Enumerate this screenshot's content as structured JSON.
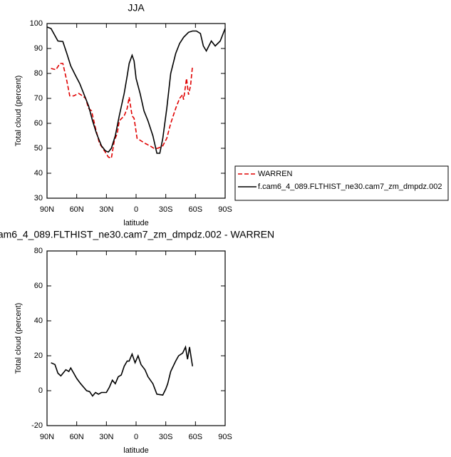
{
  "chart_data": [
    {
      "type": "line",
      "title": "JJA",
      "ylabel": "Total cloud (percent)",
      "xlabel": "latitude",
      "xlim": [
        90,
        -90
      ],
      "xticks": [
        {
          "value": 90,
          "label": "90N"
        },
        {
          "value": 60,
          "label": "60N"
        },
        {
          "value": 30,
          "label": "30N"
        },
        0,
        {
          "value": -30,
          "label": "30S"
        },
        {
          "value": -60,
          "label": "60S"
        },
        {
          "value": -90,
          "label": "90S"
        }
      ],
      "ylim": [
        30,
        100
      ],
      "yticks": [
        30,
        40,
        50,
        60,
        70,
        80,
        90,
        100
      ],
      "legend": "right",
      "series": [
        {
          "name": "WARREN",
          "color": "#e00000",
          "line_style": "dashed",
          "x": [
            86,
            81,
            77,
            74,
            70,
            67,
            63,
            58,
            54,
            51,
            48,
            45,
            41,
            37,
            32,
            28,
            25,
            22,
            19,
            17,
            12,
            9,
            7,
            4,
            2,
            -1,
            -5,
            -9,
            -14,
            -18,
            -22,
            -27,
            -31,
            -35,
            -40,
            -44,
            -47,
            -48,
            -51,
            -53,
            -55,
            -57
          ],
          "values": [
            82,
            81.5,
            84,
            84,
            77,
            71,
            71,
            72,
            71,
            70,
            66,
            65,
            58,
            52,
            49,
            46.5,
            46,
            53,
            56,
            61,
            63,
            66,
            70.5,
            63,
            62,
            54,
            53,
            52,
            51,
            50,
            50,
            51,
            54,
            60,
            66,
            70,
            71.5,
            69.5,
            78,
            71.5,
            75,
            83
          ]
        },
        {
          "name": "f.cam6_4_089.FLTHIST_ne30.cam7_zm_dmpdz.002",
          "color": "#000000",
          "line_style": "solid",
          "x": [
            90,
            86,
            79,
            74,
            70,
            66,
            61,
            57,
            53,
            48,
            44,
            40,
            35,
            31,
            28,
            25,
            21,
            17,
            12,
            9,
            7,
            4,
            2,
            0,
            -4,
            -8,
            -12,
            -17,
            -21,
            -24,
            -27,
            -31,
            -35,
            -40,
            -44,
            -48,
            -53,
            -57,
            -61,
            -65,
            -68,
            -71,
            -76,
            -80,
            -85,
            -90
          ],
          "values": [
            98.6,
            98,
            93,
            92.8,
            88,
            83,
            79,
            76,
            72,
            67,
            61,
            56,
            51,
            49,
            48.5,
            50,
            55,
            63,
            72,
            79,
            84,
            87.3,
            85,
            78,
            72,
            65,
            61,
            55,
            48,
            48,
            54,
            66,
            80,
            88,
            92,
            94.5,
            96.5,
            97,
            97,
            96,
            91,
            89,
            93,
            91,
            93,
            98
          ]
        }
      ]
    },
    {
      "type": "line",
      "title": "am6_4_089.FLTHIST_ne30.cam7_zm_dmpdz.002 - WARREN",
      "ylabel": "Total cloud (percent)",
      "xlabel": "latitude",
      "xlim": [
        90,
        -90
      ],
      "xticks": [
        {
          "value": 90,
          "label": "90N"
        },
        {
          "value": 60,
          "label": "60N"
        },
        {
          "value": 30,
          "label": "30N"
        },
        0,
        {
          "value": -30,
          "label": "30S"
        },
        {
          "value": -60,
          "label": "60S"
        },
        {
          "value": -90,
          "label": "90S"
        }
      ],
      "ylim": [
        -20,
        80
      ],
      "yticks": [
        -20,
        0,
        20,
        40,
        60,
        80
      ],
      "series": [
        {
          "color": "#000000",
          "line_style": "solid",
          "x": [
            86,
            82,
            79,
            76,
            71,
            68,
            66,
            63,
            60,
            56,
            53,
            50,
            47,
            44,
            41,
            38,
            35,
            30,
            27,
            24,
            21,
            18,
            15,
            12,
            9,
            7,
            4,
            1,
            -2,
            -5,
            -9,
            -12,
            -17,
            -21,
            -27,
            -30,
            -32,
            -35,
            -40,
            -43,
            -47,
            -50,
            -52,
            -54,
            -57
          ],
          "values": [
            16,
            15,
            10,
            8.5,
            12,
            11,
            13,
            10,
            7,
            4,
            2,
            0,
            -0.5,
            -3,
            -1,
            -2,
            -1,
            -1,
            2,
            6,
            4,
            8,
            9,
            14,
            17,
            17,
            21,
            16,
            20,
            15,
            12,
            8,
            4,
            -2,
            -2.5,
            1,
            4,
            11,
            17,
            20,
            21.5,
            25,
            18,
            25,
            14
          ]
        }
      ]
    }
  ]
}
